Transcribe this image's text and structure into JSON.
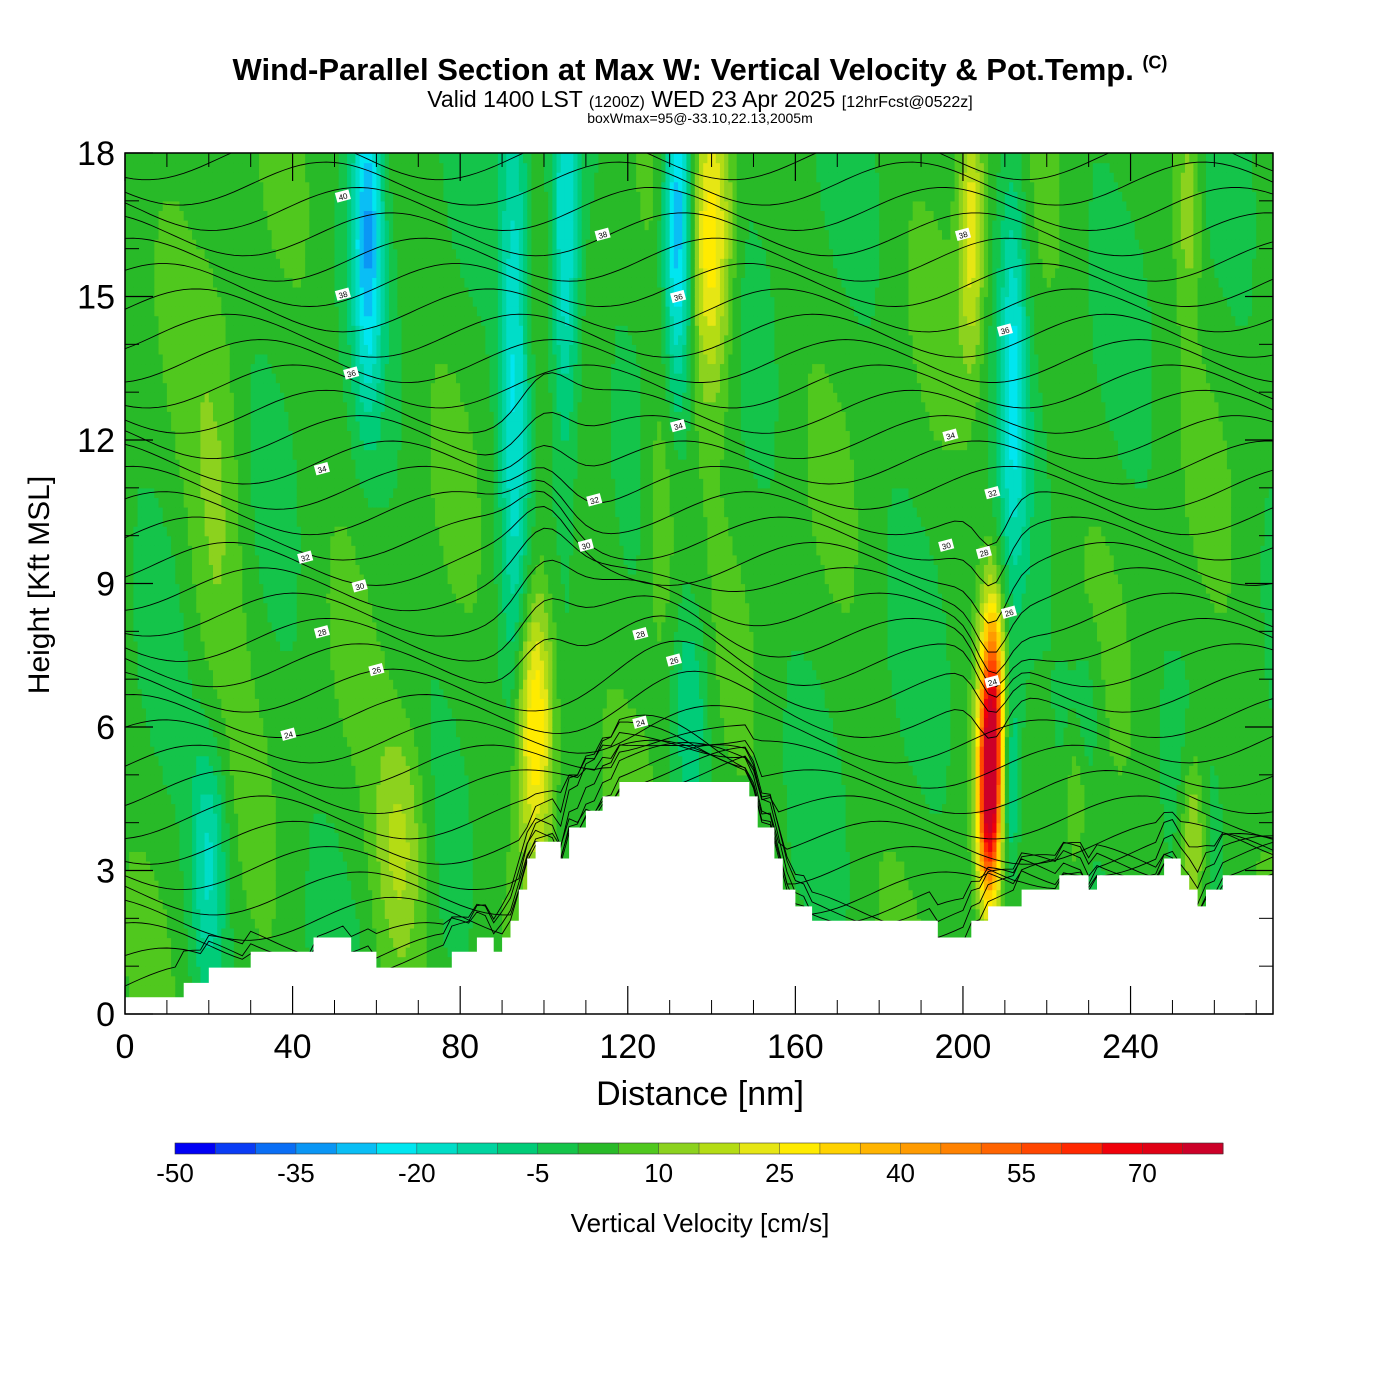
{
  "header": {
    "title": "Wind-Parallel Section at Max W: Vertical Velocity & Pot.Temp.",
    "title_mark": "(C)",
    "valid_prefix": "Valid 1400 LST",
    "valid_utc": "(1200Z)",
    "valid_date": "WED 23 Apr 2025",
    "forecast": "[12hrFcst@0522z]",
    "box_info": "boxWmax=95@-33.10,22.13,2005m"
  },
  "chart_data": {
    "type": "cross-section",
    "title": "Wind-Parallel Section at Max W: Vertical Velocity & Pot.Temp.",
    "xlabel": "Distance [nm]",
    "ylabel": "Height [Kft MSL]",
    "xlim": [
      0,
      274
    ],
    "ylim": [
      0,
      18
    ],
    "x_ticks": [
      0,
      40,
      80,
      120,
      160,
      200,
      240
    ],
    "x_tick_labels": [
      "0",
      "40",
      "80",
      "120",
      "160",
      "200",
      "240"
    ],
    "y_ticks": [
      0,
      3,
      6,
      9,
      12,
      15,
      18
    ],
    "y_tick_labels": [
      "0",
      "3",
      "6",
      "9",
      "12",
      "15",
      "18"
    ],
    "terrain_kft": [
      [
        0,
        0.35
      ],
      [
        14,
        0.35
      ],
      [
        14,
        0.65
      ],
      [
        20,
        0.65
      ],
      [
        20,
        0.97
      ],
      [
        30,
        0.97
      ],
      [
        30,
        1.3
      ],
      [
        45,
        1.3
      ],
      [
        45,
        1.6
      ],
      [
        54,
        1.6
      ],
      [
        54,
        1.3
      ],
      [
        60,
        1.3
      ],
      [
        60,
        0.97
      ],
      [
        78,
        0.97
      ],
      [
        78,
        1.3
      ],
      [
        84,
        1.3
      ],
      [
        84,
        1.6
      ],
      [
        88,
        1.6
      ],
      [
        88,
        1.3
      ],
      [
        90,
        1.3
      ],
      [
        90,
        1.6
      ],
      [
        92,
        1.6
      ],
      [
        92,
        1.95
      ],
      [
        94,
        1.95
      ],
      [
        94,
        2.6
      ],
      [
        96,
        2.6
      ],
      [
        96,
        3.25
      ],
      [
        98,
        3.25
      ],
      [
        98,
        3.6
      ],
      [
        104,
        3.6
      ],
      [
        104,
        3.25
      ],
      [
        106,
        3.25
      ],
      [
        106,
        3.9
      ],
      [
        110,
        3.9
      ],
      [
        110,
        4.25
      ],
      [
        114,
        4.25
      ],
      [
        114,
        4.55
      ],
      [
        118,
        4.55
      ],
      [
        118,
        4.85
      ],
      [
        149,
        4.85
      ],
      [
        149,
        4.55
      ],
      [
        151,
        4.55
      ],
      [
        151,
        3.9
      ],
      [
        155,
        3.9
      ],
      [
        155,
        3.25
      ],
      [
        157,
        3.25
      ],
      [
        157,
        2.6
      ],
      [
        160,
        2.6
      ],
      [
        160,
        2.25
      ],
      [
        164,
        2.25
      ],
      [
        164,
        1.95
      ],
      [
        194,
        1.95
      ],
      [
        194,
        1.6
      ],
      [
        202,
        1.6
      ],
      [
        202,
        1.95
      ],
      [
        206,
        1.95
      ],
      [
        206,
        2.25
      ],
      [
        214,
        2.25
      ],
      [
        214,
        2.6
      ],
      [
        223,
        2.6
      ],
      [
        223,
        2.9
      ],
      [
        230,
        2.9
      ],
      [
        230,
        2.6
      ],
      [
        232,
        2.6
      ],
      [
        232,
        2.9
      ],
      [
        248,
        2.9
      ],
      [
        248,
        3.25
      ],
      [
        252,
        3.25
      ],
      [
        252,
        2.9
      ],
      [
        254,
        2.9
      ],
      [
        254,
        2.6
      ],
      [
        256,
        2.6
      ],
      [
        256,
        2.25
      ],
      [
        258,
        2.25
      ],
      [
        258,
        2.6
      ],
      [
        262,
        2.6
      ],
      [
        262,
        2.9
      ],
      [
        274,
        2.9
      ]
    ],
    "updrafts": [
      {
        "x": 98,
        "y": 6.2,
        "sx": 3.2,
        "sy": 2.0,
        "w": 32
      },
      {
        "x": 140,
        "y": 16.2,
        "sx": 3.5,
        "sy": 2.2,
        "w": 28
      },
      {
        "x": 207,
        "y": 6.0,
        "sx": 2.0,
        "sy": 1.8,
        "w": 68
      },
      {
        "x": 206,
        "y": 4.2,
        "sx": 1.8,
        "sy": 1.4,
        "w": 45
      },
      {
        "x": 202,
        "y": 16.5,
        "sx": 2.2,
        "sy": 2.0,
        "w": 22
      },
      {
        "x": 66,
        "y": 3.6,
        "sx": 4.5,
        "sy": 1.8,
        "w": 15
      },
      {
        "x": 255,
        "y": 3.6,
        "sx": 2.0,
        "sy": 1.3,
        "w": 18
      },
      {
        "x": 254,
        "y": 17.0,
        "sx": 2.0,
        "sy": 1.5,
        "w": 12
      },
      {
        "x": 227,
        "y": 5.0,
        "sx": 2.0,
        "sy": 1.6,
        "w": 12
      },
      {
        "x": 128,
        "y": 10.5,
        "sx": 3.0,
        "sy": 2.5,
        "w": 10
      },
      {
        "x": 22,
        "y": 10.5,
        "sx": 5.0,
        "sy": 3.0,
        "w": 8
      }
    ],
    "downdrafts": [
      {
        "x": 58,
        "y": 16.5,
        "sx": 2.5,
        "sy": 2.5,
        "w": -30
      },
      {
        "x": 93,
        "y": 13.5,
        "sx": 2.5,
        "sy": 4.5,
        "w": -22
      },
      {
        "x": 105,
        "y": 16.0,
        "sx": 2.5,
        "sy": 3.0,
        "w": -25
      },
      {
        "x": 132,
        "y": 16.5,
        "sx": 2.5,
        "sy": 2.5,
        "w": -35
      },
      {
        "x": 212,
        "y": 13.5,
        "sx": 2.5,
        "sy": 3.0,
        "w": -22
      },
      {
        "x": 211,
        "y": 4.8,
        "sx": 2.0,
        "sy": 1.5,
        "w": -20
      },
      {
        "x": 20,
        "y": 3.2,
        "sx": 3.0,
        "sy": 1.8,
        "w": -18
      },
      {
        "x": 228,
        "y": 6.3,
        "sx": 3.0,
        "sy": 1.2,
        "w": -12
      },
      {
        "x": 135,
        "y": 6.5,
        "sx": 3.0,
        "sy": 1.5,
        "w": -12
      }
    ],
    "theta_labels": [
      {
        "x": 52,
        "y": 17.1,
        "text": "40"
      },
      {
        "x": 114,
        "y": 16.3,
        "text": "38"
      },
      {
        "x": 200,
        "y": 16.3,
        "text": "38"
      },
      {
        "x": 52,
        "y": 15.05,
        "text": "38"
      },
      {
        "x": 132,
        "y": 15.0,
        "text": "36"
      },
      {
        "x": 54,
        "y": 13.4,
        "text": "36"
      },
      {
        "x": 210,
        "y": 14.3,
        "text": "36"
      },
      {
        "x": 132,
        "y": 12.3,
        "text": "34"
      },
      {
        "x": 197,
        "y": 12.1,
        "text": "34"
      },
      {
        "x": 47,
        "y": 11.4,
        "text": "34"
      },
      {
        "x": 112,
        "y": 10.75,
        "text": "32"
      },
      {
        "x": 207,
        "y": 10.9,
        "text": "32"
      },
      {
        "x": 110,
        "y": 9.8,
        "text": "30"
      },
      {
        "x": 196,
        "y": 9.8,
        "text": "30"
      },
      {
        "x": 43,
        "y": 9.55,
        "text": "32"
      },
      {
        "x": 56,
        "y": 8.95,
        "text": "30"
      },
      {
        "x": 205,
        "y": 9.65,
        "text": "28"
      },
      {
        "x": 211,
        "y": 8.4,
        "text": "26"
      },
      {
        "x": 47,
        "y": 7.99,
        "text": "28"
      },
      {
        "x": 123,
        "y": 7.95,
        "text": "28"
      },
      {
        "x": 131,
        "y": 7.4,
        "text": "26"
      },
      {
        "x": 60,
        "y": 7.2,
        "text": "26"
      },
      {
        "x": 207,
        "y": 6.95,
        "text": "24"
      },
      {
        "x": 123,
        "y": 6.1,
        "text": "24"
      },
      {
        "x": 39,
        "y": 5.85,
        "text": "24"
      }
    ],
    "colorbar": {
      "label": "Vertical Velocity [cm/s]",
      "min": -50,
      "max": 80,
      "step": 5,
      "tick_values": [
        -50,
        -35,
        -20,
        -5,
        10,
        25,
        40,
        55,
        70
      ],
      "tick_labels": [
        "-50",
        "-35",
        "-20",
        "-5",
        "10",
        "25",
        "40",
        "55",
        "70"
      ],
      "colors": [
        "#0000f5",
        "#0a3cf5",
        "#0a6ef5",
        "#0a96f5",
        "#0abef5",
        "#00e6f0",
        "#00ddc8",
        "#00d4a0",
        "#00cc78",
        "#14c44a",
        "#28ba28",
        "#50c81e",
        "#8cd21e",
        "#b4dc14",
        "#e6e614",
        "#ffeb00",
        "#ffd200",
        "#ffb400",
        "#ff9b00",
        "#ff8200",
        "#ff6400",
        "#ff4600",
        "#ff2800",
        "#f0000a",
        "#e00014",
        "#cc0028"
      ]
    }
  }
}
